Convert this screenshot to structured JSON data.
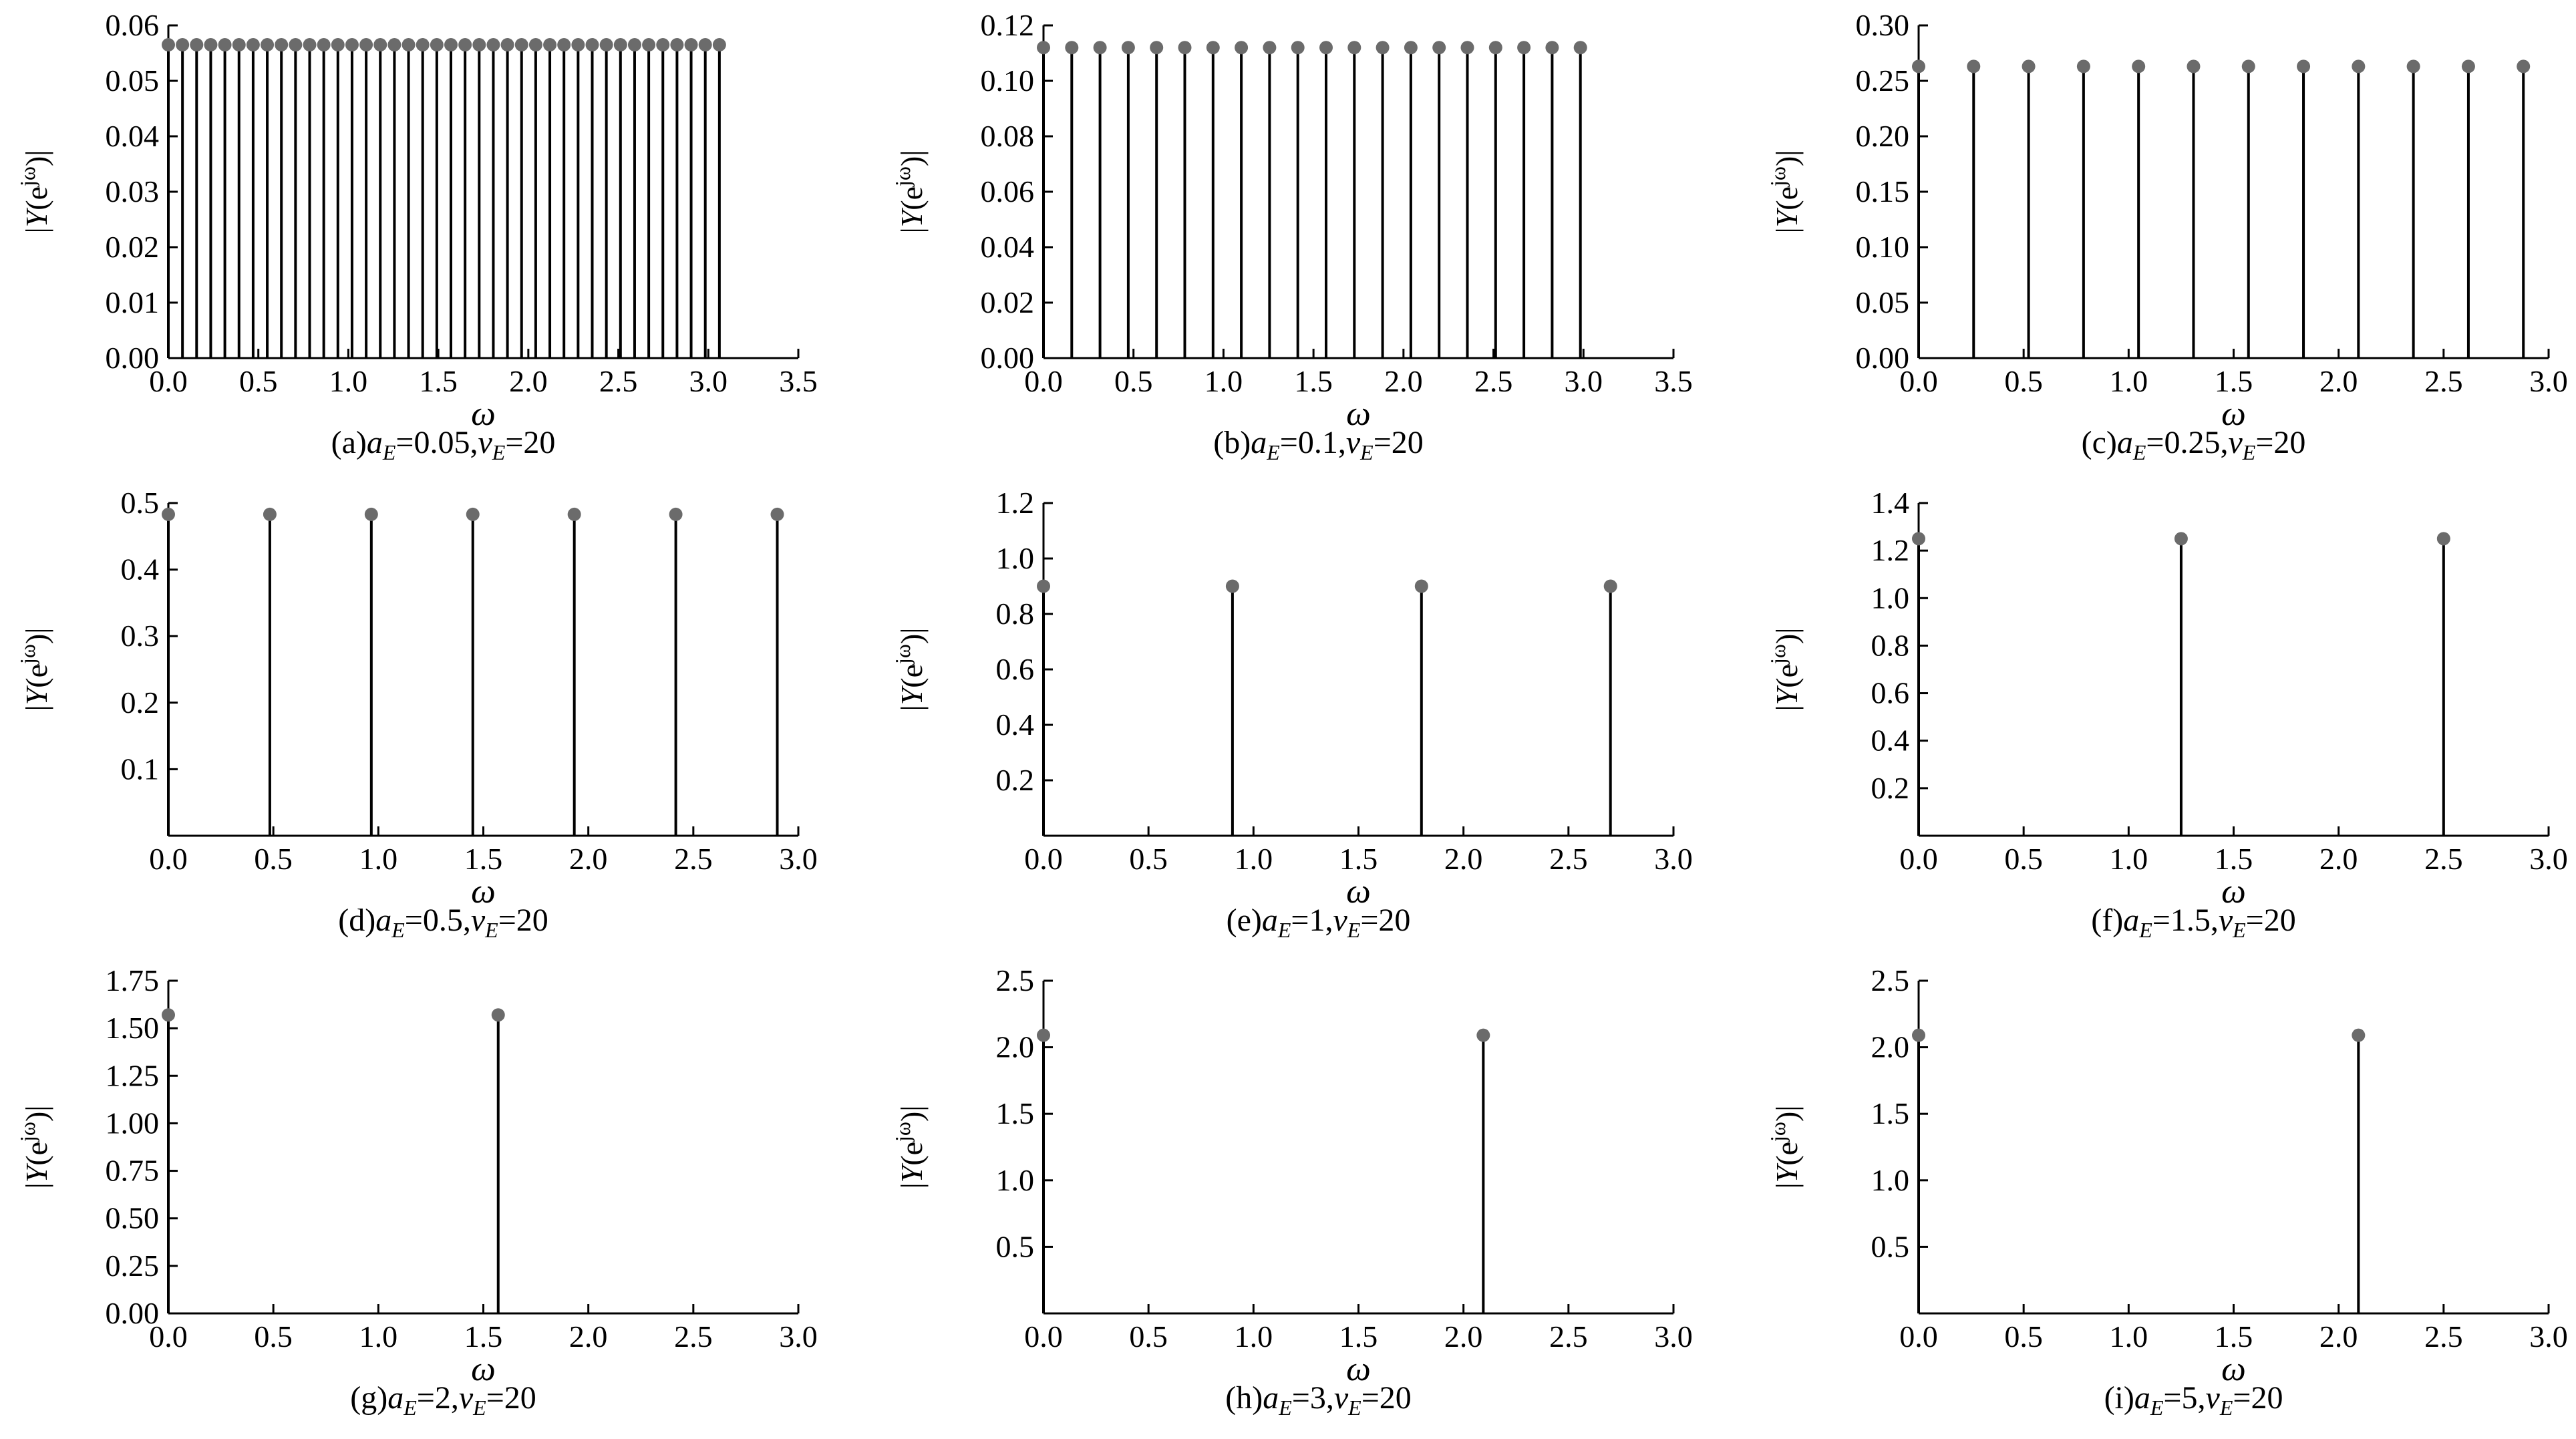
{
  "colors": {
    "stem": "#000000",
    "marker": "#6b6b6b",
    "axis": "#000000"
  },
  "chart_data": [
    {
      "type": "scatter",
      "subtype": "stem",
      "caption": {
        "prefix": "(a)",
        "a": "0.05",
        "v": "20"
      },
      "xlabel": "ω",
      "ylabel": {
        "pre": "|",
        "Y": "Y",
        "mid": "(e",
        "sup": "jω",
        "post": ")|"
      },
      "xlim": [
        0,
        3.5
      ],
      "ylim": [
        0,
        0.06
      ],
      "xticks": [
        "0.0",
        "0.5",
        "1.0",
        "1.5",
        "2.0",
        "2.5",
        "3.0",
        "3.5"
      ],
      "yticks": [
        "0.00",
        "0.01",
        "0.02",
        "0.03",
        "0.04",
        "0.05",
        "0.06"
      ],
      "stem_start": 0,
      "stem_step": 0.0785,
      "stem_count": 40,
      "stem_value": 0.0565
    },
    {
      "type": "scatter",
      "subtype": "stem",
      "caption": {
        "prefix": "(b)",
        "a": "0.1",
        "v": "20"
      },
      "xlabel": "ω",
      "ylabel": {
        "pre": "|",
        "Y": "Y",
        "mid": "(e",
        "sup": "jω",
        "post": ")|"
      },
      "xlim": [
        0,
        3.5
      ],
      "ylim": [
        0,
        0.12
      ],
      "xticks": [
        "0.0",
        "0.5",
        "1.0",
        "1.5",
        "2.0",
        "2.5",
        "3.0",
        "3.5"
      ],
      "yticks": [
        "0.00",
        "0.02",
        "0.04",
        "0.06",
        "0.08",
        "0.10",
        "0.12"
      ],
      "stem_start": 0,
      "stem_step": 0.157,
      "stem_count": 20,
      "stem_value": 0.112
    },
    {
      "type": "scatter",
      "subtype": "stem",
      "caption": {
        "prefix": "(c)",
        "a": "0.25",
        "v": "20"
      },
      "xlabel": "ω",
      "ylabel": {
        "pre": "|",
        "Y": "Y",
        "mid": "(e",
        "sup": "jω",
        "post": ")|"
      },
      "xlim": [
        0,
        3.0
      ],
      "ylim": [
        0,
        0.3
      ],
      "xticks": [
        "0.0",
        "0.5",
        "1.0",
        "1.5",
        "2.0",
        "2.5",
        "3.0"
      ],
      "yticks": [
        "0.00",
        "0.05",
        "0.10",
        "0.15",
        "0.20",
        "0.25",
        "0.30"
      ],
      "stem_start": 0,
      "stem_step": 0.2618,
      "stem_count": 12,
      "stem_value": 0.263
    },
    {
      "type": "scatter",
      "subtype": "stem",
      "caption": {
        "prefix": "(d)",
        "a": "0.5",
        "v": "20"
      },
      "xlabel": "ω",
      "ylabel": {
        "pre": "|",
        "Y": "Y",
        "mid": "(e",
        "sup": "jω",
        "post": ")|"
      },
      "xlim": [
        0,
        3.0
      ],
      "ylim": [
        0,
        0.5
      ],
      "xticks": [
        "0.0",
        "0.5",
        "1.0",
        "1.5",
        "2.0",
        "2.5",
        "3.0"
      ],
      "yticks": [
        "",
        "0.1",
        "0.2",
        "0.3",
        "0.4",
        "0.5"
      ],
      "stem_start": 0,
      "stem_step": 0.4833,
      "stem_count": 7,
      "stem_value": 0.483
    },
    {
      "type": "scatter",
      "subtype": "stem",
      "caption": {
        "prefix": "(e)",
        "a": "1",
        "v": "20"
      },
      "xlabel": "ω",
      "ylabel": {
        "pre": "|",
        "Y": "Y",
        "mid": "(e",
        "sup": "jω",
        "post": ")|"
      },
      "xlim": [
        0,
        3.0
      ],
      "ylim": [
        0,
        1.2
      ],
      "xticks": [
        "0.0",
        "0.5",
        "1.0",
        "1.5",
        "2.0",
        "2.5",
        "3.0"
      ],
      "yticks": [
        "",
        "0.2",
        "0.4",
        "0.6",
        "0.8",
        "1.0",
        "1.2"
      ],
      "stem_start": 0,
      "stem_step": 0.9,
      "stem_count": 4,
      "stem_value": 0.9
    },
    {
      "type": "scatter",
      "subtype": "stem",
      "caption": {
        "prefix": "(f)",
        "a": "1.5",
        "v": "20"
      },
      "xlabel": "ω",
      "ylabel": {
        "pre": "|",
        "Y": "Y",
        "mid": "(e",
        "sup": "jω",
        "post": ")|"
      },
      "xlim": [
        0,
        3.0
      ],
      "ylim": [
        0,
        1.4
      ],
      "xticks": [
        "0.0",
        "0.5",
        "1.0",
        "1.5",
        "2.0",
        "2.5",
        "3.0"
      ],
      "yticks": [
        "",
        "0.2",
        "0.4",
        "0.6",
        "0.8",
        "1.0",
        "1.2",
        "1.4"
      ],
      "stem_start": 0,
      "stem_step": 1.25,
      "stem_count": 3,
      "stem_value": 1.25
    },
    {
      "type": "scatter",
      "subtype": "stem",
      "caption": {
        "prefix": "(g)",
        "a": "2",
        "v": "20"
      },
      "xlabel": "ω",
      "ylabel": {
        "pre": "|",
        "Y": "Y",
        "mid": "(e",
        "sup": "jω",
        "post": ")|"
      },
      "xlim": [
        0,
        3.0
      ],
      "ylim": [
        0,
        1.75
      ],
      "xticks": [
        "0.0",
        "0.5",
        "1.0",
        "1.5",
        "2.0",
        "2.5",
        "3.0"
      ],
      "yticks": [
        "0.00",
        "0.25",
        "0.50",
        "0.75",
        "1.00",
        "1.25",
        "1.50",
        "1.75"
      ],
      "stem_start": 0,
      "stem_step": 1.5708,
      "stem_count": 2,
      "stem_value": 1.57
    },
    {
      "type": "scatter",
      "subtype": "stem",
      "caption": {
        "prefix": "(h)",
        "a": "3",
        "v": "20"
      },
      "xlabel": "ω",
      "ylabel": {
        "pre": "|",
        "Y": "Y",
        "mid": "(e",
        "sup": "jω",
        "post": ")|"
      },
      "xlim": [
        0,
        3.0
      ],
      "ylim": [
        0,
        2.5
      ],
      "xticks": [
        "0.0",
        "0.5",
        "1.0",
        "1.5",
        "2.0",
        "2.5",
        "3.0"
      ],
      "yticks": [
        "",
        "0.5",
        "1.0",
        "1.5",
        "2.0",
        "2.5"
      ],
      "stem_start": 0,
      "stem_step": 2.0944,
      "stem_count": 2,
      "stem_value": 2.09
    },
    {
      "type": "scatter",
      "subtype": "stem",
      "caption": {
        "prefix": "(i)",
        "a": "5",
        "v": "20"
      },
      "xlabel": "ω",
      "ylabel": {
        "pre": "|",
        "Y": "Y",
        "mid": "(e",
        "sup": "jω",
        "post": ")|"
      },
      "xlim": [
        0,
        3.0
      ],
      "ylim": [
        0,
        2.5
      ],
      "xticks": [
        "0.0",
        "0.5",
        "1.0",
        "1.5",
        "2.0",
        "2.5",
        "3.0"
      ],
      "yticks": [
        "",
        "0.5",
        "1.0",
        "1.5",
        "2.0",
        "2.5"
      ],
      "stem_start": 0,
      "stem_step": 2.0944,
      "stem_count": 2,
      "stem_value": 2.09
    }
  ]
}
